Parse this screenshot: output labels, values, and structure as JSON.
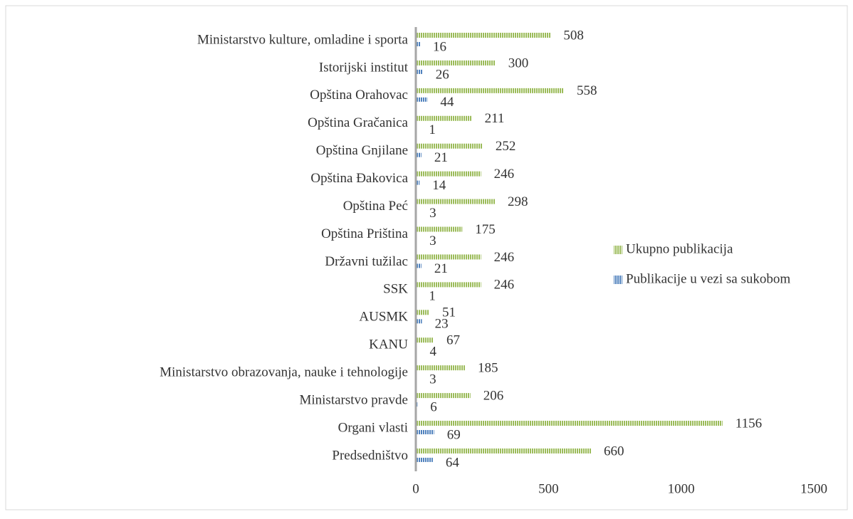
{
  "chart_data": {
    "type": "bar",
    "orientation": "horizontal",
    "categories": [
      "Ministarstvo kulture, omladine i sporta",
      "Istorijski institut",
      "Opština Orahovac",
      "Opština Gračanica",
      "Opština Gnjilane",
      "Opština Đakovica",
      "Opština Peć",
      "Opština Priština",
      "Državni tužilac",
      "SSK",
      "AUSMK",
      "KANU",
      "Ministarstvo obrazovanja, nauke i tehnologije",
      "Ministarstvo pravde",
      "Organi vlasti",
      "Predsedništvo"
    ],
    "series": [
      {
        "name": "Ukupno publikacija",
        "color": "#9bbb59",
        "values": [
          508,
          300,
          558,
          211,
          252,
          246,
          298,
          175,
          246,
          246,
          51,
          67,
          185,
          206,
          1156,
          660
        ]
      },
      {
        "name": "Publikacije u vezi sa sukobom",
        "color": "#4f81bd",
        "values": [
          16,
          26,
          44,
          1,
          21,
          14,
          3,
          3,
          21,
          1,
          23,
          4,
          3,
          6,
          69,
          64
        ]
      }
    ],
    "xlim": [
      0,
      1500
    ],
    "xticks": [
      0,
      500,
      1000,
      1500
    ],
    "grid": false,
    "legend": "right"
  }
}
